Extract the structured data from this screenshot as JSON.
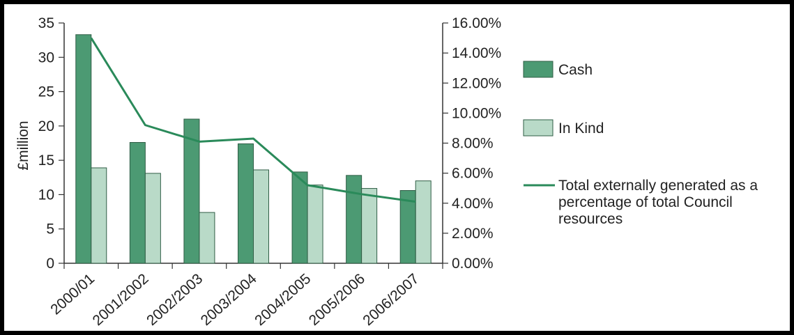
{
  "chart_data": {
    "type": "bar",
    "categories": [
      "2000/01",
      "2001/2002",
      "2002/2003",
      "2003/2004",
      "2004/2005",
      "2005/2006",
      "2006/2007"
    ],
    "series": [
      {
        "name": "Cash",
        "type": "bar",
        "axis": "left",
        "color": "#4c9a73",
        "values": [
          33.3,
          17.6,
          21.0,
          17.4,
          13.3,
          12.8,
          10.6
        ]
      },
      {
        "name": "In Kind",
        "type": "bar",
        "axis": "left",
        "color": "#b9dac8",
        "values": [
          13.9,
          13.1,
          7.4,
          13.6,
          11.4,
          10.9,
          12.0
        ]
      },
      {
        "name": "Total externally generated as a percentage of total Council resources",
        "type": "line",
        "axis": "right",
        "color": "#2a8a5a",
        "values": [
          15.0,
          9.2,
          8.1,
          8.3,
          5.2,
          4.6,
          4.1
        ]
      }
    ],
    "ylabel": "£million",
    "ylim": [
      0,
      35
    ],
    "yticks": [
      "0",
      "5",
      "10",
      "15",
      "20",
      "25",
      "30",
      "35"
    ],
    "y2lim": [
      0,
      16
    ],
    "y2ticks": [
      "0.00%",
      "2.00%",
      "4.00%",
      "6.00%",
      "8.00%",
      "10.00%",
      "12.00%",
      "14.00%",
      "16.00%"
    ],
    "legend": {
      "placement": "right",
      "cash": "Cash",
      "inkind": "In Kind",
      "line_lines": [
        "Total externally generated as a",
        "percentage of total Council",
        "resources"
      ]
    },
    "grid": false
  }
}
